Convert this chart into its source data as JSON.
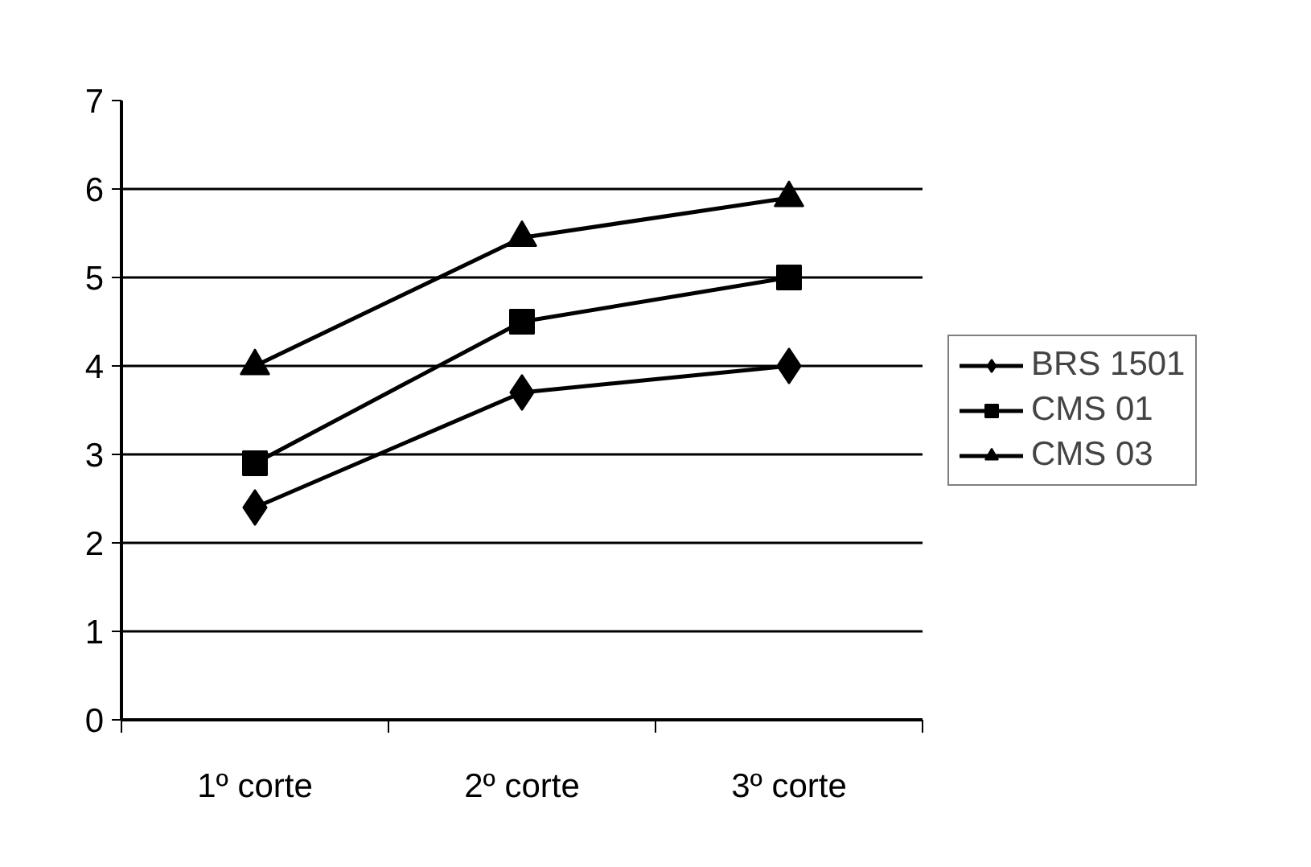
{
  "chart_data": {
    "type": "line",
    "categories": [
      "1º corte",
      "2º corte",
      "3º corte"
    ],
    "ylim": [
      0,
      7
    ],
    "yticks": [
      0,
      1,
      2,
      3,
      4,
      5,
      6,
      7
    ],
    "grid": "y",
    "legend": "right",
    "line_style": "solid",
    "series": [
      {
        "name": "BRS 1501",
        "color": "#000000",
        "marker": "diamond",
        "values": [
          2.4,
          3.7,
          4.0
        ]
      },
      {
        "name": "CMS 01",
        "color": "#000000",
        "marker": "square",
        "values": [
          2.9,
          4.5,
          5.0
        ]
      },
      {
        "name": "CMS 03",
        "color": "#000000",
        "marker": "triangle",
        "values": [
          4.0,
          5.45,
          5.9
        ]
      }
    ]
  }
}
